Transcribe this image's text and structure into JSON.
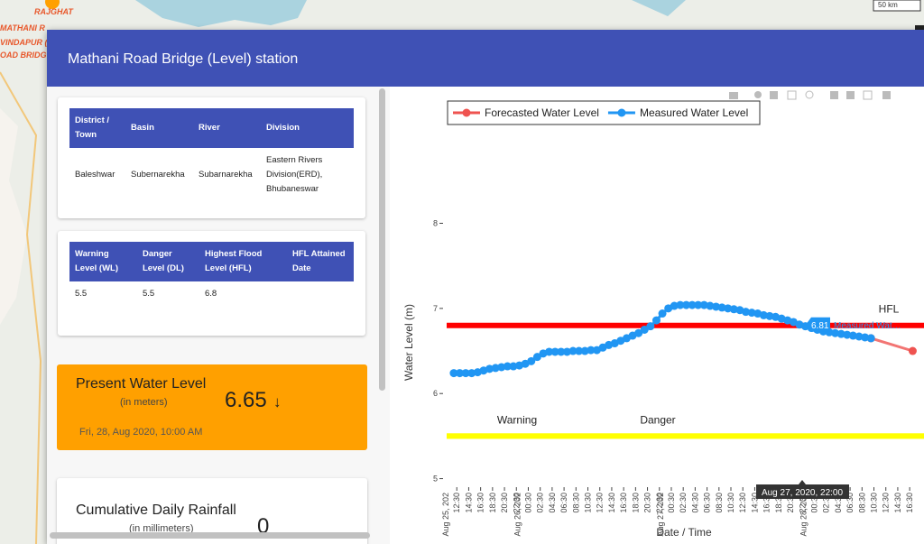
{
  "map": {
    "labels": [
      "RAJGHAT",
      "MATHANI R",
      "VINDAPUR (",
      "OAD BRIDG"
    ],
    "scale": "50 km"
  },
  "modal": {
    "title": "Mathani Road Bridge (Level) station"
  },
  "station_table": {
    "headers": [
      "District / Town",
      "Basin",
      "River",
      "Division"
    ],
    "rows": [
      [
        "Baleshwar",
        "Subernarekha",
        "Subarnarekha",
        "Eastern Rivers Division(ERD), Bhubaneswar"
      ]
    ]
  },
  "levels_table": {
    "headers": [
      "Warning Level (WL)",
      "Danger Level (DL)",
      "Highest Flood Level (HFL)",
      "HFL Attained Date"
    ],
    "rows": [
      [
        5.5,
        5.5,
        6.8
      ]
    ]
  },
  "present_level": {
    "title": "Present Water Level",
    "unit": "(in meters)",
    "value": 6.65,
    "trend": "↓",
    "time": "Fri, 28, Aug 2020, 10:00 AM"
  },
  "rainfall": {
    "title": "Cumulative Daily Rainfall",
    "unit": "(in millimeters)",
    "value": 0
  },
  "chart_data": {
    "type": "line",
    "x_label": "Date / Time",
    "y_label": "Water Level (m)",
    "ylim": [
      4.9,
      9.15
    ],
    "yticks": [
      5,
      6,
      7,
      8
    ],
    "xlim": [
      "2020-08-25 10:48",
      "2020-08-28 18:36"
    ],
    "xticks": [
      {
        "value": "2020-08-25 12:30",
        "label": "12:30"
      },
      {
        "value": "2020-08-25 14:30",
        "label": "14:30"
      },
      {
        "value": "2020-08-25 16:30",
        "label": "16:30"
      },
      {
        "value": "2020-08-25 18:30",
        "label": "18:30"
      },
      {
        "value": "2020-08-25 20:30",
        "label": "20:30"
      },
      {
        "value": "2020-08-25 22:30",
        "label": "22:30"
      },
      {
        "value": "2020-08-26 00:30",
        "label": "00:30"
      },
      {
        "value": "2020-08-26 02:30",
        "label": "02:30"
      },
      {
        "value": "2020-08-26 04:30",
        "label": "04:30"
      },
      {
        "value": "2020-08-26 06:30",
        "label": "06:30"
      },
      {
        "value": "2020-08-26 08:30",
        "label": "08:30"
      },
      {
        "value": "2020-08-26 10:30",
        "label": "10:30"
      },
      {
        "value": "2020-08-26 12:30",
        "label": "12:30"
      },
      {
        "value": "2020-08-26 14:30",
        "label": "14:30"
      },
      {
        "value": "2020-08-26 16:30",
        "label": "16:30"
      },
      {
        "value": "2020-08-26 18:30",
        "label": "18:30"
      },
      {
        "value": "2020-08-26 20:30",
        "label": "20:30"
      },
      {
        "value": "2020-08-26 22:30",
        "label": "22:30"
      },
      {
        "value": "2020-08-27 00:30",
        "label": "00:30"
      },
      {
        "value": "2020-08-27 02:30",
        "label": "02:30"
      },
      {
        "value": "2020-08-27 04:30",
        "label": "04:30"
      },
      {
        "value": "2020-08-27 06:30",
        "label": "06:30"
      },
      {
        "value": "2020-08-27 08:30",
        "label": "08:30"
      },
      {
        "value": "2020-08-27 10:30",
        "label": "10:30"
      },
      {
        "value": "2020-08-27 12:30",
        "label": "12:30"
      },
      {
        "value": "2020-08-27 14:30",
        "label": "14:30"
      },
      {
        "value": "2020-08-27 16:30",
        "label": "16:30"
      },
      {
        "value": "2020-08-27 18:30",
        "label": "18:30"
      },
      {
        "value": "2020-08-27 20:30",
        "label": "20:30"
      },
      {
        "value": "2020-08-27 22:30",
        "label": "22:30"
      },
      {
        "value": "2020-08-28 00:30",
        "label": "00:30"
      },
      {
        "value": "2020-08-28 02:30",
        "label": "02:30"
      },
      {
        "value": "2020-08-28 04:30",
        "label": "04:30"
      },
      {
        "value": "2020-08-28 06:30",
        "label": "06:30"
      },
      {
        "value": "2020-08-28 08:30",
        "label": "08:30"
      },
      {
        "value": "2020-08-28 10:30",
        "label": "10:30"
      },
      {
        "value": "2020-08-28 12:30",
        "label": "12:30"
      },
      {
        "value": "2020-08-28 14:30",
        "label": "14:30"
      },
      {
        "value": "2020-08-28 16:30",
        "label": "16:30"
      }
    ],
    "xdate_ticks": [
      {
        "value": "2020-08-25 12:30",
        "label": "Aug 25, 202"
      },
      {
        "value": "2020-08-26 00:30",
        "label": "Aug 26, 202"
      },
      {
        "value": "2020-08-27 00:30",
        "label": "Aug 27, 202"
      },
      {
        "value": "2020-08-28 00:30",
        "label": "Aug 28, 202"
      }
    ],
    "reference_lines": [
      {
        "label": "HFL",
        "value": 6.8,
        "color": "#ff0000"
      },
      {
        "label": "Warning",
        "value": 5.5,
        "color": "#ffff00"
      },
      {
        "label": "Danger",
        "value": 5.5,
        "color": "#ffff00"
      }
    ],
    "series": [
      {
        "name": "Forecasted Water Level",
        "color": "#ef5350",
        "x": [
          "2020-08-28 10:00",
          "2020-08-28 17:00"
        ],
        "values": [
          6.65,
          6.5
        ]
      },
      {
        "name": "Measured Water Level",
        "color": "#2196f3",
        "x": [
          "2020-08-25 12:00",
          "2020-08-25 13:00",
          "2020-08-25 14:00",
          "2020-08-25 15:00",
          "2020-08-25 16:00",
          "2020-08-25 17:00",
          "2020-08-25 18:00",
          "2020-08-25 19:00",
          "2020-08-25 20:00",
          "2020-08-25 21:00",
          "2020-08-25 22:00",
          "2020-08-25 23:00",
          "2020-08-26 00:00",
          "2020-08-26 01:00",
          "2020-08-26 02:00",
          "2020-08-26 03:00",
          "2020-08-26 04:00",
          "2020-08-26 05:00",
          "2020-08-26 06:00",
          "2020-08-26 07:00",
          "2020-08-26 08:00",
          "2020-08-26 09:00",
          "2020-08-26 10:00",
          "2020-08-26 11:00",
          "2020-08-26 12:00",
          "2020-08-26 13:00",
          "2020-08-26 14:00",
          "2020-08-26 15:00",
          "2020-08-26 16:00",
          "2020-08-26 17:00",
          "2020-08-26 18:00",
          "2020-08-26 19:00",
          "2020-08-26 20:00",
          "2020-08-26 21:00",
          "2020-08-26 22:00",
          "2020-08-26 23:00",
          "2020-08-27 00:00",
          "2020-08-27 01:00",
          "2020-08-27 02:00",
          "2020-08-27 03:00",
          "2020-08-27 04:00",
          "2020-08-27 05:00",
          "2020-08-27 06:00",
          "2020-08-27 07:00",
          "2020-08-27 08:00",
          "2020-08-27 09:00",
          "2020-08-27 10:00",
          "2020-08-27 11:00",
          "2020-08-27 12:00",
          "2020-08-27 13:00",
          "2020-08-27 14:00",
          "2020-08-27 15:00",
          "2020-08-27 16:00",
          "2020-08-27 17:00",
          "2020-08-27 18:00",
          "2020-08-27 19:00",
          "2020-08-27 20:00",
          "2020-08-27 21:00",
          "2020-08-27 22:00",
          "2020-08-27 23:00",
          "2020-08-28 00:00",
          "2020-08-28 01:00",
          "2020-08-28 02:00",
          "2020-08-28 03:00",
          "2020-08-28 04:00",
          "2020-08-28 05:00",
          "2020-08-28 06:00",
          "2020-08-28 07:00",
          "2020-08-28 08:00",
          "2020-08-28 09:00",
          "2020-08-28 10:00"
        ],
        "values": [
          6.24,
          6.24,
          6.24,
          6.24,
          6.25,
          6.27,
          6.29,
          6.3,
          6.31,
          6.32,
          6.32,
          6.33,
          6.35,
          6.38,
          6.43,
          6.47,
          6.49,
          6.49,
          6.49,
          6.49,
          6.5,
          6.5,
          6.5,
          6.51,
          6.51,
          6.54,
          6.57,
          6.59,
          6.62,
          6.65,
          6.68,
          6.71,
          6.75,
          6.79,
          6.86,
          6.94,
          7.0,
          7.03,
          7.04,
          7.04,
          7.04,
          7.04,
          7.04,
          7.03,
          7.02,
          7.01,
          7.0,
          6.99,
          6.98,
          6.96,
          6.95,
          6.94,
          6.92,
          6.91,
          6.9,
          6.88,
          6.86,
          6.84,
          6.81,
          6.79,
          6.77,
          6.75,
          6.73,
          6.72,
          6.71,
          6.7,
          6.69,
          6.68,
          6.67,
          6.66,
          6.65
        ]
      }
    ],
    "hover": {
      "value": 6.81,
      "series_label": "Measured Wat…",
      "x_label": "Aug 27, 2020, 22:00"
    }
  }
}
